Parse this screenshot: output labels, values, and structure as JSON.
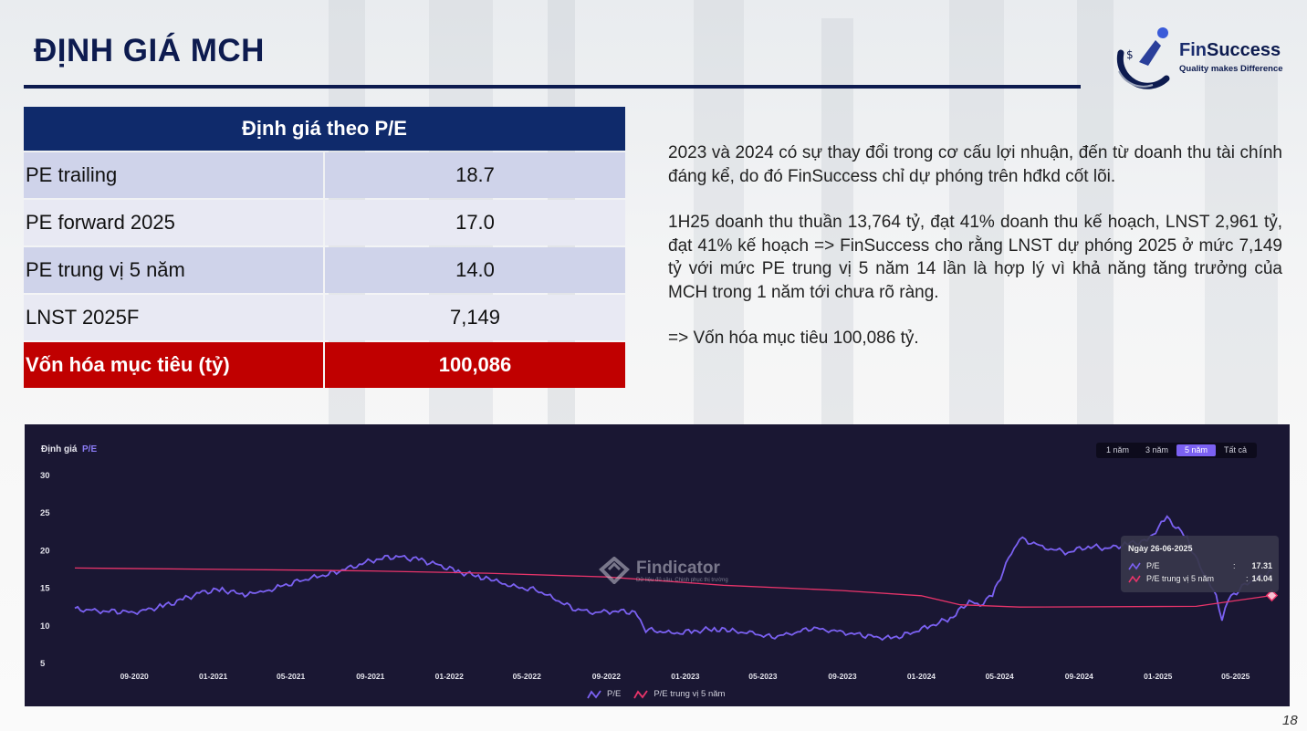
{
  "slide": {
    "title": "ĐỊNH GIÁ MCH",
    "page_number": "18",
    "brand": {
      "name_prefix": "Fin",
      "name_suffix": "Success",
      "tagline": "Quality makes Difference"
    },
    "colors": {
      "navy": "#0d1b4f",
      "table_header": "#0f2a6b",
      "highlight_red": "#c00000",
      "chart_bg": "#1a1733",
      "pe_line": "#7b61f2",
      "median_line": "#e8346a"
    }
  },
  "valuation_table": {
    "header": "Định giá theo P/E",
    "rows": [
      {
        "label": "PE trailing",
        "value": "18.7"
      },
      {
        "label": "PE forward 2025",
        "value": "17.0"
      },
      {
        "label": "PE trung vị 5 năm",
        "value": "14.0"
      },
      {
        "label": "LNST 2025F",
        "value": "7,149"
      }
    ],
    "target": {
      "label": "Vốn hóa mục tiêu (tỷ)",
      "value": "100,086"
    }
  },
  "commentary": {
    "p1": "2023 và 2024 có sự thay đổi trong cơ cấu lợi nhuận, đến từ doanh thu tài chính đáng kể, do đó FinSuccess chỉ dự phóng trên hđkd cốt lõi.",
    "p2": "1H25 doanh thu thuần 13,764 tỷ, đạt 41% doanh thu kế hoạch, LNST 2,961 tỷ, đạt 41% kế hoạch => FinSuccess cho rằng LNST dự phóng 2025 ở mức 7,149 tỷ với mức PE trung vị 5 năm 14 lần là hợp lý vì khả năng tăng trưởng của MCH trong 1 năm tới chưa rõ ràng.",
    "p3": "=> Vốn hóa mục tiêu 100,086 tỷ."
  },
  "chart": {
    "title_prefix": "Định giá",
    "title_metric": "P/E",
    "range_tabs": [
      "1 năm",
      "3 năm",
      "5 năm",
      "Tất cả"
    ],
    "active_tab": "5 năm",
    "watermark": {
      "name": "Findicator",
      "sub": "Dữ liệu đủ sâu, Chinh phục thị trường"
    },
    "tooltip": {
      "date": "Ngày 26-06-2025",
      "rows": [
        {
          "label": "P/E",
          "sep": ":",
          "value": "17.31"
        },
        {
          "label": "P/E trung vị 5 năm",
          "sep": ":",
          "value": "14.04"
        }
      ]
    },
    "legend": [
      "P/E",
      "P/E trung vị 5 năm"
    ]
  },
  "chart_data": {
    "type": "line",
    "title": "Định giá P/E",
    "ylim": [
      5,
      30
    ],
    "y_ticks": [
      5,
      10,
      15,
      20,
      25,
      30
    ],
    "x_range": [
      "2020-06-01",
      "2025-07-01"
    ],
    "x_ticks": [
      "09-2020",
      "01-2021",
      "05-2021",
      "09-2021",
      "01-2022",
      "05-2022",
      "09-2022",
      "01-2023",
      "05-2023",
      "09-2023",
      "01-2024",
      "05-2024",
      "09-2024",
      "01-2025",
      "05-2025"
    ],
    "grid": false,
    "legend_position": "bottom-center",
    "series": [
      {
        "name": "P/E",
        "color": "#7b61f2",
        "points": [
          [
            "2020-06-01",
            12.2
          ],
          [
            "2020-07-15",
            12.0
          ],
          [
            "2020-09-01",
            11.8
          ],
          [
            "2020-10-15",
            12.6
          ],
          [
            "2020-11-15",
            13.5
          ],
          [
            "2020-12-15",
            14.5
          ],
          [
            "2021-01-15",
            14.8
          ],
          [
            "2021-02-15",
            14.2
          ],
          [
            "2021-03-15",
            14.4
          ],
          [
            "2021-04-15",
            15.2
          ],
          [
            "2021-05-15",
            16.0
          ],
          [
            "2021-06-15",
            16.6
          ],
          [
            "2021-07-15",
            17.3
          ],
          [
            "2021-08-15",
            18.2
          ],
          [
            "2021-09-15",
            19.0
          ],
          [
            "2021-10-15",
            19.2
          ],
          [
            "2021-11-15",
            18.8
          ],
          [
            "2021-12-15",
            18.1
          ],
          [
            "2022-01-15",
            17.2
          ],
          [
            "2022-02-15",
            16.6
          ],
          [
            "2022-03-15",
            15.9
          ],
          [
            "2022-04-15",
            15.1
          ],
          [
            "2022-05-15",
            14.8
          ],
          [
            "2022-06-15",
            13.5
          ],
          [
            "2022-07-15",
            12.2
          ],
          [
            "2022-08-15",
            11.8
          ],
          [
            "2022-09-15",
            12.0
          ],
          [
            "2022-10-15",
            11.8
          ],
          [
            "2022-11-01",
            9.5
          ],
          [
            "2022-12-15",
            9.0
          ],
          [
            "2023-01-15",
            9.3
          ],
          [
            "2023-02-15",
            9.6
          ],
          [
            "2023-03-15",
            9.3
          ],
          [
            "2023-04-15",
            9.0
          ],
          [
            "2023-05-15",
            8.5
          ],
          [
            "2023-06-15",
            9.0
          ],
          [
            "2023-07-15",
            9.7
          ],
          [
            "2023-08-15",
            9.4
          ],
          [
            "2023-09-15",
            9.0
          ],
          [
            "2023-10-15",
            8.6
          ],
          [
            "2023-11-15",
            8.3
          ],
          [
            "2023-12-15",
            9.0
          ],
          [
            "2024-01-15",
            10.0
          ],
          [
            "2024-02-15",
            11.0
          ],
          [
            "2024-03-15",
            13.2
          ],
          [
            "2024-04-01",
            12.8
          ],
          [
            "2024-04-20",
            14.0
          ],
          [
            "2024-05-15",
            19.0
          ],
          [
            "2024-06-01",
            21.6
          ],
          [
            "2024-07-15",
            20.3
          ],
          [
            "2024-08-15",
            19.8
          ],
          [
            "2024-09-15",
            20.6
          ],
          [
            "2024-10-15",
            20.3
          ],
          [
            "2024-11-15",
            20.9
          ],
          [
            "2024-12-15",
            21.3
          ],
          [
            "2025-01-15",
            24.4
          ],
          [
            "2025-02-15",
            21.6
          ],
          [
            "2025-03-15",
            16.4
          ],
          [
            "2025-04-01",
            14.2
          ],
          [
            "2025-04-10",
            10.6
          ],
          [
            "2025-04-20",
            13.5
          ],
          [
            "2025-05-15",
            15.5
          ],
          [
            "2025-06-26",
            17.31
          ]
        ]
      },
      {
        "name": "P/E trung vị 5 năm",
        "color": "#e8346a",
        "points": [
          [
            "2020-06-01",
            17.7
          ],
          [
            "2021-06-01",
            17.4
          ],
          [
            "2021-09-01",
            17.3
          ],
          [
            "2022-03-01",
            17.0
          ],
          [
            "2022-09-01",
            16.5
          ],
          [
            "2023-03-01",
            15.4
          ],
          [
            "2023-09-01",
            14.7
          ],
          [
            "2024-01-01",
            14.0
          ],
          [
            "2024-03-01",
            12.8
          ],
          [
            "2024-06-01",
            12.5
          ],
          [
            "2025-03-01",
            12.6
          ],
          [
            "2025-06-26",
            14.04
          ]
        ]
      }
    ]
  }
}
